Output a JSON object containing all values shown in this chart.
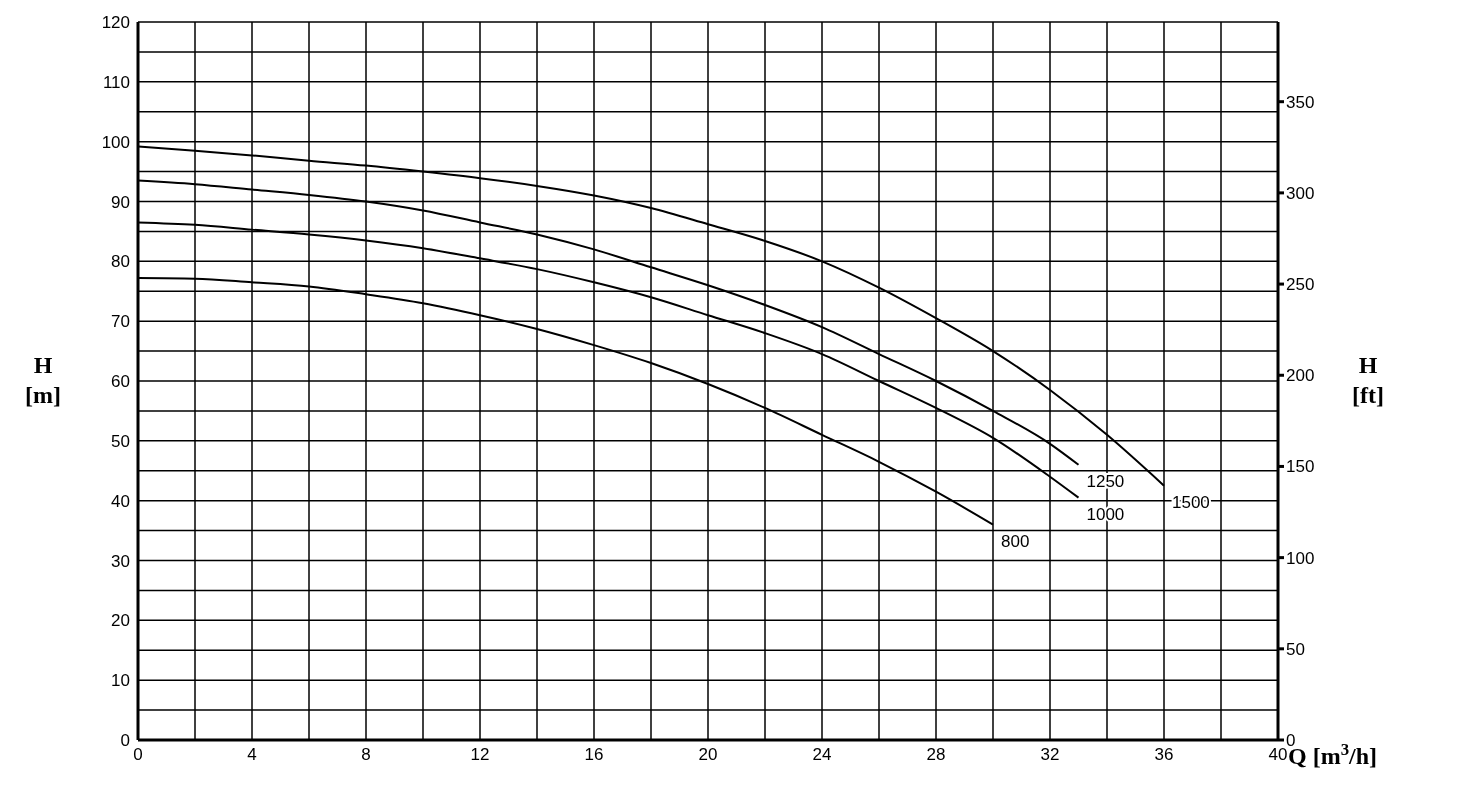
{
  "chart_data": {
    "type": "line",
    "xlabel": "Q [m$^{3}$/h]",
    "ylabel": "H [m]",
    "y2label": "H [ft]",
    "xlim": [
      0,
      40
    ],
    "xticks": [
      0,
      {
        "value": 2,
        "label": null
      },
      4,
      {
        "value": 6,
        "label": null
      },
      8,
      {
        "value": 10,
        "label": null
      },
      12,
      {
        "value": 14,
        "label": null
      },
      16,
      {
        "value": 18,
        "label": null
      },
      20,
      {
        "value": 22,
        "label": null
      },
      24,
      {
        "value": 26,
        "label": null
      },
      28,
      {
        "value": 30,
        "label": null
      },
      32,
      {
        "value": 34,
        "label": null
      },
      36,
      {
        "value": 38,
        "label": null
      },
      40
    ],
    "ylim": [
      0,
      120
    ],
    "yticks": [
      0,
      {
        "value": 5,
        "label": null
      },
      10,
      {
        "value": 15,
        "label": null
      },
      20,
      {
        "value": 25,
        "label": null
      },
      30,
      {
        "value": 35,
        "label": null
      },
      40,
      {
        "value": 45,
        "label": null
      },
      50,
      {
        "value": 55,
        "label": null
      },
      60,
      {
        "value": 65,
        "label": null
      },
      70,
      {
        "value": 75,
        "label": null
      },
      80,
      {
        "value": 85,
        "label": null
      },
      90,
      {
        "value": 95,
        "label": null
      },
      100,
      {
        "value": 105,
        "label": null
      },
      110,
      {
        "value": 115,
        "label": null
      },
      120
    ],
    "y2lim": [
      0,
      393.7
    ],
    "y2ticks": [
      0,
      50,
      100,
      150,
      200,
      250,
      300,
      350
    ],
    "grid": true,
    "legend": false,
    "marker": "none",
    "line_style": "solid",
    "series": [
      {
        "name": "800",
        "color": "#000000",
        "x": [
          0,
          2,
          4,
          6,
          8,
          10,
          12,
          14,
          16,
          18,
          20,
          22,
          24,
          26,
          28,
          30
        ],
        "values": [
          77.2,
          77.1,
          76.5,
          75.8,
          74.5,
          73,
          71,
          68.7,
          66,
          63,
          59.5,
          55.5,
          51,
          46.5,
          41.5,
          36
        ]
      },
      {
        "name": "1000",
        "color": "#000000",
        "x": [
          0,
          2,
          4,
          6,
          8,
          10,
          12,
          14,
          16,
          18,
          20,
          22,
          24,
          26,
          28,
          30,
          32,
          33
        ],
        "values": [
          86.5,
          86.1,
          85.3,
          84.5,
          83.5,
          82.2,
          80.5,
          78.7,
          76.5,
          74,
          71,
          68,
          64.5,
          60,
          55.5,
          50.5,
          44,
          40.5
        ]
      },
      {
        "name": "1250",
        "color": "#000000",
        "x": [
          0,
          2,
          4,
          6,
          8,
          10,
          12,
          14,
          16,
          18,
          20,
          22,
          24,
          26,
          28,
          30,
          32,
          33
        ],
        "values": [
          93.5,
          92.9,
          92,
          91.1,
          90,
          88.5,
          86.5,
          84.5,
          82,
          79,
          76,
          72.7,
          69,
          64.5,
          60,
          55,
          49.5,
          46
        ]
      },
      {
        "name": "1500",
        "color": "#000000",
        "x": [
          0,
          2,
          4,
          6,
          8,
          10,
          12,
          14,
          16,
          18,
          20,
          22,
          24,
          26,
          28,
          30,
          32,
          34,
          36
        ],
        "values": [
          99.2,
          98.5,
          97.7,
          96.8,
          96,
          95,
          93.9,
          92.6,
          91,
          88.9,
          86.2,
          83.4,
          80,
          75.6,
          70.5,
          65,
          58.5,
          51,
          42.5
        ]
      }
    ]
  }
}
